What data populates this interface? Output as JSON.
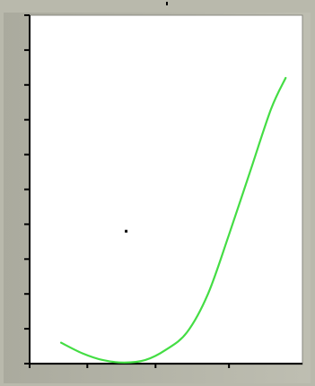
{
  "chart_data": {
    "type": "line",
    "title": "",
    "xlabel": "",
    "ylabel": "",
    "xlim": [
      0,
      13
    ],
    "ylim": [
      0,
      10
    ],
    "x_ticks": [
      0,
      2.75,
      6,
      9.5
    ],
    "y_ticks": [
      0,
      1,
      2,
      3,
      4,
      5,
      6,
      7,
      8,
      9,
      10
    ],
    "grid": false,
    "legend": "none",
    "series": [
      {
        "color": "#44dd44",
        "x": [
          1.5,
          2.5,
          3.5,
          4.5,
          5.5,
          6.5,
          7.5,
          8.5,
          9.5,
          10.5,
          11.5,
          12.2
        ],
        "y": [
          0.6,
          0.3,
          0.1,
          0.03,
          0.1,
          0.4,
          0.9,
          2.0,
          3.7,
          5.5,
          7.3,
          8.2
        ]
      }
    ],
    "annotations": [
      {
        "kind": "dot",
        "x": 4.6,
        "y": 3.8
      }
    ]
  },
  "colors": {
    "background": "#b9b9ac",
    "plot_area": "#ffffff",
    "axis": "#000000"
  }
}
